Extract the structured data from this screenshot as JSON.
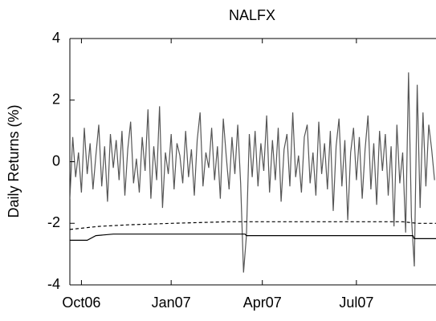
{
  "chart_data": {
    "type": "line",
    "title": "NALFX",
    "ylabel": "Daily Returns (%)",
    "xlim": [
      0,
      253
    ],
    "ylim": [
      -4,
      4
    ],
    "xticks": [
      {
        "value": 8,
        "label": "Oct06"
      },
      {
        "value": 70,
        "label": "Jan07"
      },
      {
        "value": 133,
        "label": "Apr07"
      },
      {
        "value": 198,
        "label": "Jul07"
      }
    ],
    "yticks": [
      -4,
      -2,
      0,
      2,
      4
    ],
    "grid": false,
    "series": [
      {
        "color": "#555555",
        "dashed": false,
        "x": [
          0,
          2,
          4,
          6,
          8,
          10,
          12,
          14,
          16,
          18,
          20,
          22,
          24,
          26,
          28,
          30,
          32,
          34,
          36,
          38,
          40,
          42,
          44,
          46,
          48,
          50,
          52,
          54,
          56,
          58,
          60,
          62,
          64,
          66,
          68,
          70,
          72,
          74,
          76,
          78,
          80,
          82,
          84,
          86,
          88,
          90,
          92,
          94,
          96,
          98,
          100,
          102,
          104,
          106,
          108,
          110,
          112,
          114,
          116,
          118,
          120,
          122,
          124,
          126,
          128,
          130,
          132,
          134,
          136,
          138,
          140,
          142,
          144,
          146,
          148,
          150,
          152,
          154,
          156,
          158,
          160,
          162,
          164,
          166,
          168,
          170,
          172,
          174,
          176,
          178,
          180,
          182,
          184,
          186,
          188,
          190,
          192,
          194,
          196,
          198,
          200,
          202,
          204,
          206,
          208,
          210,
          212,
          214,
          216,
          218,
          220,
          222,
          224,
          226,
          228,
          230,
          232,
          234,
          236,
          238,
          240,
          242,
          244,
          246,
          248,
          250,
          252
        ],
        "values": [
          -1.2,
          0.8,
          -0.5,
          0.3,
          -1.0,
          1.1,
          -0.4,
          0.6,
          -0.9,
          0.2,
          1.2,
          -0.8,
          0.5,
          -1.3,
          0.9,
          -0.2,
          0.7,
          -0.6,
          1.0,
          -1.1,
          0.4,
          1.3,
          -0.7,
          0.1,
          -1.0,
          0.8,
          -0.3,
          1.7,
          -1.2,
          0.5,
          -0.6,
          1.8,
          -1.5,
          0.3,
          -0.4,
          0.9,
          -0.9,
          0.6,
          0.2,
          -0.7,
          1.0,
          -0.5,
          0.4,
          -1.1,
          0.7,
          1.6,
          -0.8,
          0.3,
          -0.2,
          1.1,
          -0.6,
          0.5,
          -1.2,
          1.4,
          0.2,
          -0.9,
          0.8,
          -0.4,
          1.2,
          -0.7,
          -3.6,
          -2.4,
          0.9,
          -0.5,
          1.0,
          -0.8,
          0.6,
          -0.3,
          1.5,
          -1.0,
          0.7,
          -0.6,
          1.1,
          -1.3,
          0.4,
          0.9,
          -0.8,
          1.6,
          -0.5,
          0.2,
          -1.0,
          0.8,
          1.2,
          -0.7,
          0.3,
          -1.1,
          1.3,
          -0.4,
          0.6,
          -0.9,
          1.0,
          -1.6,
          0.5,
          1.4,
          -0.8,
          0.7,
          -1.9,
          0.3,
          1.1,
          -0.6,
          0.8,
          -1.2,
          0.4,
          1.5,
          -0.9,
          0.6,
          -1.4,
          1.0,
          -0.3,
          0.9,
          -1.1,
          0.5,
          -2.1,
          1.2,
          -0.7,
          0.3,
          -2.3,
          2.9,
          -1.8,
          -3.4,
          2.5,
          -1.5,
          1.6,
          -0.8,
          1.2,
          0.4,
          -0.6
        ]
      },
      {
        "color": "#000000",
        "dashed": true,
        "x": [
          0,
          10,
          20,
          40,
          70,
          110,
          150,
          200,
          230,
          240,
          253
        ],
        "values": [
          -2.2,
          -2.15,
          -2.1,
          -2.05,
          -2.0,
          -1.95,
          -1.95,
          -1.95,
          -1.95,
          -2.0,
          -2.0
        ]
      },
      {
        "color": "#000000",
        "dashed": false,
        "x": [
          0,
          12,
          18,
          30,
          60,
          121,
          122,
          200,
          237,
          238,
          253
        ],
        "values": [
          -2.55,
          -2.55,
          -2.4,
          -2.35,
          -2.35,
          -2.35,
          -2.4,
          -2.4,
          -2.4,
          -2.5,
          -2.5
        ]
      }
    ]
  }
}
